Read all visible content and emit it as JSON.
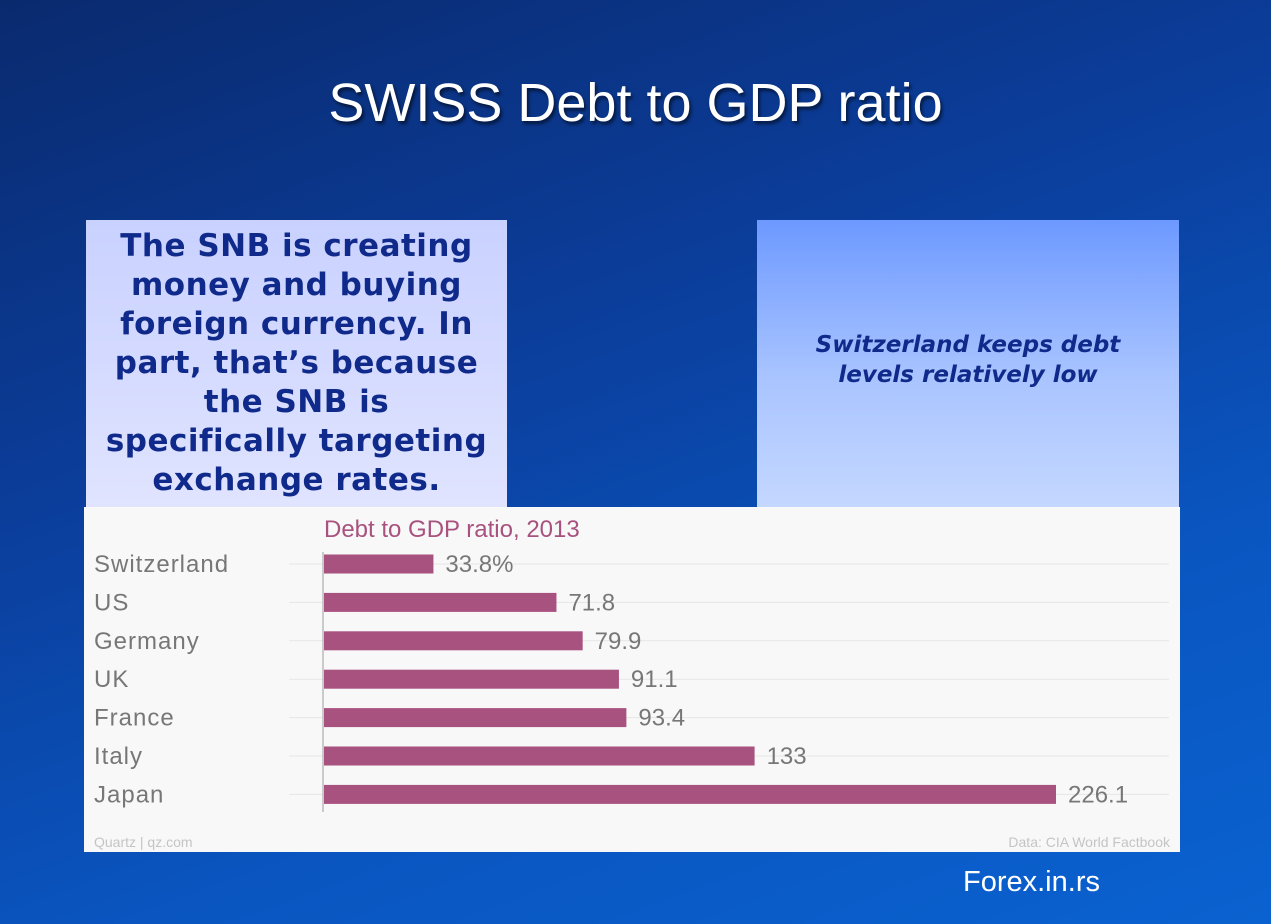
{
  "slide": {
    "title": "SWISS Debt to GDP ratio",
    "left_box_text": "The SNB is creating money and buying foreign currency. In part, that’s because the SNB is specifically targeting exchange rates.",
    "right_box_text": "Switzerland keeps debt levels relatively low",
    "footer_brand": "Forex.in.rs"
  },
  "chart_data": {
    "type": "bar",
    "orientation": "horizontal",
    "title": "Debt to GDP ratio, 2013",
    "categories": [
      "Switzerland",
      "US",
      "Germany",
      "UK",
      "France",
      "Italy",
      "Japan"
    ],
    "values": [
      33.8,
      71.8,
      79.9,
      91.1,
      93.4,
      133,
      226.1
    ],
    "value_labels": [
      "33.8%",
      "71.8",
      "79.9",
      "91.1",
      "93.4",
      "133",
      "226.1"
    ],
    "source_left": "Quartz | qz.com",
    "source_right": "Data: CIA World Factbook",
    "xlim": [
      0,
      226.1
    ],
    "bar_color": "#a8527f",
    "title_color": "#a8527f",
    "label_color": "#777777",
    "grid": true,
    "legend": "none"
  }
}
